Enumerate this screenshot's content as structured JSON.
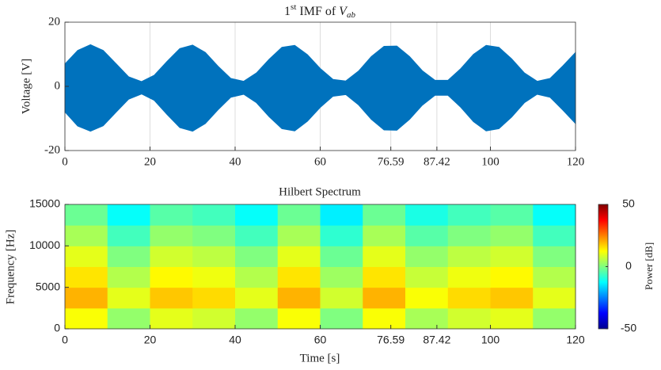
{
  "chart_data": [
    {
      "type": "area",
      "title": {
        "base": "1",
        "sup": "st",
        "middle": " IMF of ",
        "var": "V",
        "sub": "ab"
      },
      "ylabel": "Voltage [V]",
      "color": "#0072bd",
      "x": [
        0,
        3,
        6,
        9,
        12,
        15,
        18,
        21,
        24,
        27,
        30,
        33,
        36,
        39,
        42,
        45,
        48,
        51,
        54,
        57,
        60,
        63,
        66,
        69,
        72,
        75,
        78,
        81,
        84,
        87,
        90,
        93,
        96,
        99,
        102,
        105,
        108,
        111,
        114,
        117,
        120
      ],
      "upper": [
        7,
        11.2,
        13,
        11.2,
        7.1,
        3,
        1.5,
        3.5,
        7.8,
        11.8,
        12.9,
        10.6,
        6.3,
        2.5,
        1.6,
        4.2,
        8.5,
        12.2,
        12.8,
        9.9,
        5.6,
        2.2,
        1.7,
        4.8,
        9.3,
        12.5,
        12.6,
        9.3,
        4.9,
        1.9,
        1.9,
        5.5,
        10,
        12.8,
        12.2,
        8.6,
        4.2,
        1.6,
        2.5,
        6.4,
        10.6
      ],
      "lower": [
        -8,
        -12.4,
        -14,
        -12.3,
        -8.1,
        -4,
        -2.4,
        -4.4,
        -8.8,
        -12.9,
        -14,
        -11.6,
        -7.3,
        -3.4,
        -2.5,
        -5.1,
        -9.5,
        -13.2,
        -13.9,
        -10.9,
        -6.6,
        -3.1,
        -2.6,
        -5.8,
        -10.3,
        -13.6,
        -13.7,
        -10.3,
        -5.9,
        -2.8,
        -2.8,
        -6.5,
        -11,
        -13.9,
        -13.2,
        -9.6,
        -5.1,
        -2.5,
        -3.4,
        -7.4,
        -11.6
      ],
      "xlim": [
        0,
        120
      ],
      "xticks": [
        0,
        20,
        40,
        60,
        76.59,
        87.42,
        100,
        120
      ],
      "ylim": [
        -20,
        20
      ],
      "yticks": [
        -20,
        0,
        20
      ],
      "grid": "x"
    },
    {
      "type": "heatmap",
      "title": "Hilbert Spectrum",
      "xlabel": "Time [s]",
      "ylabel": "Frequency [Hz]",
      "colormap": "jet",
      "x_edges": [
        0,
        10,
        20,
        30,
        40,
        50,
        60,
        70,
        80,
        90,
        100,
        110,
        120
      ],
      "y_edges": [
        0,
        2500,
        5000,
        7500,
        10000,
        12500,
        15000
      ],
      "z": [
        [
          12,
          2,
          10,
          8,
          2,
          12,
          0,
          12,
          4,
          8,
          10,
          2
        ],
        [
          20,
          10,
          18,
          16,
          10,
          20,
          8,
          20,
          12,
          16,
          18,
          10
        ],
        [
          15,
          5,
          13,
          11,
          5,
          15,
          3,
          15,
          7,
          11,
          13,
          5
        ],
        [
          10,
          0,
          8,
          6,
          0,
          10,
          -2,
          10,
          2,
          6,
          8,
          0
        ],
        [
          4,
          -6,
          2,
          0,
          -6,
          4,
          -8,
          4,
          -4,
          0,
          2,
          -6
        ],
        [
          -2,
          -12,
          -4,
          -6,
          -12,
          -2,
          -14,
          -2,
          -10,
          -6,
          -4,
          -12
        ]
      ],
      "xlim": [
        0,
        120
      ],
      "xticks": [
        0,
        20,
        40,
        60,
        76.59,
        87.42,
        100,
        120
      ],
      "ylim": [
        0,
        15000
      ],
      "yticks": [
        0,
        5000,
        10000,
        15000
      ],
      "clim": [
        -50,
        50
      ],
      "cticks": [
        -50,
        0,
        50
      ],
      "clabel": "Power [dB]"
    }
  ]
}
